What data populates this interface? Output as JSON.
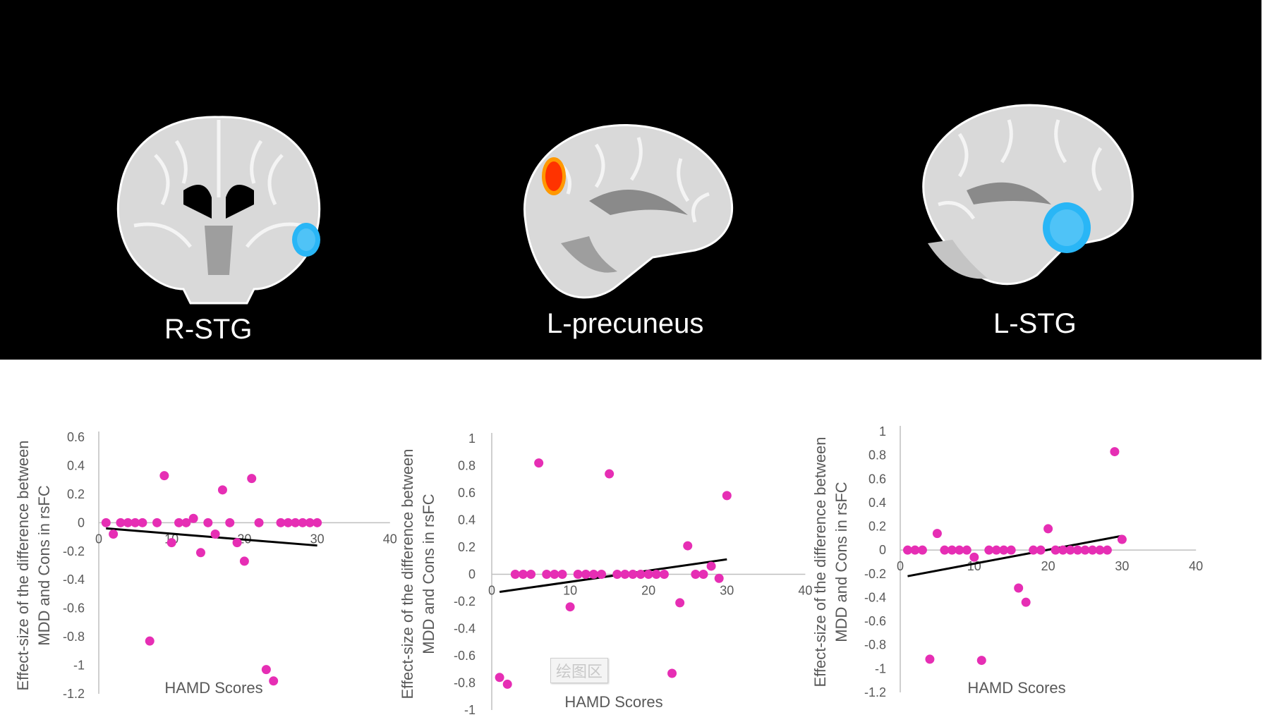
{
  "regions": [
    "R-STG",
    "L-precuneus",
    "L-STG"
  ],
  "watermark": "绘图区",
  "colors": {
    "points": "#e62eb4",
    "trend": "#000000",
    "axis": "#bfbfbf",
    "text": "#595959",
    "panel": "#000000",
    "brain": "#d9d9d9",
    "blue_cluster": "#29b6f6",
    "red_cluster": "#ff3300"
  },
  "chart_data": [
    {
      "type": "scatter",
      "title": "",
      "ylabel": "Effect-size of the difference between MDD and Cons in rsFC",
      "xlabel": "HAMD Scores",
      "xlim": [
        0,
        40
      ],
      "ylim": [
        -1.2,
        0.6
      ],
      "xticks": [
        0,
        10,
        20,
        30,
        40
      ],
      "yticks": [
        0.6,
        0.4,
        0.2,
        0,
        -0.2,
        -0.4,
        -0.6,
        -0.8,
        -1,
        -1.2
      ],
      "trendline": {
        "x": [
          1,
          30
        ],
        "y": [
          -0.04,
          -0.16
        ]
      },
      "series": [
        {
          "points": [
            [
              1,
              0
            ],
            [
              2,
              -0.08
            ],
            [
              3,
              0
            ],
            [
              4,
              0
            ],
            [
              5,
              0
            ],
            [
              6,
              0
            ],
            [
              7,
              -0.83
            ],
            [
              8,
              0
            ],
            [
              9,
              0.33
            ],
            [
              10,
              -0.14
            ],
            [
              11,
              0
            ],
            [
              12,
              0
            ],
            [
              13,
              0.03
            ],
            [
              14,
              -0.21
            ],
            [
              15,
              0
            ],
            [
              16,
              -0.08
            ],
            [
              17,
              0.23
            ],
            [
              18,
              0
            ],
            [
              19,
              -0.14
            ],
            [
              20,
              -0.27
            ],
            [
              21,
              0.31
            ],
            [
              22,
              0
            ],
            [
              23,
              -1.03
            ],
            [
              24,
              -1.11
            ],
            [
              25,
              0
            ],
            [
              26,
              0
            ],
            [
              27,
              0
            ],
            [
              28,
              0
            ],
            [
              29,
              0
            ],
            [
              30,
              0
            ]
          ]
        }
      ]
    },
    {
      "type": "scatter",
      "title": "",
      "ylabel": "Effect-size of the difference between MDD and Cons in rsFC",
      "xlabel": "HAMD Scores",
      "xlim": [
        0,
        40
      ],
      "ylim": [
        -1,
        1
      ],
      "xticks": [
        0,
        10,
        20,
        30,
        40
      ],
      "yticks": [
        1,
        0.8,
        0.6,
        0.4,
        0.2,
        0,
        -0.2,
        -0.4,
        -0.6,
        -0.8,
        -1
      ],
      "trendline": {
        "x": [
          1,
          30
        ],
        "y": [
          -0.13,
          0.11
        ]
      },
      "series": [
        {
          "points": [
            [
              1,
              -0.76
            ],
            [
              2,
              -0.81
            ],
            [
              3,
              0
            ],
            [
              4,
              0
            ],
            [
              5,
              0
            ],
            [
              6,
              0.82
            ],
            [
              7,
              0
            ],
            [
              8,
              0
            ],
            [
              9,
              0
            ],
            [
              10,
              -0.24
            ],
            [
              11,
              0
            ],
            [
              12,
              0
            ],
            [
              13,
              0
            ],
            [
              14,
              0
            ],
            [
              15,
              0.74
            ],
            [
              16,
              0
            ],
            [
              17,
              0
            ],
            [
              18,
              0
            ],
            [
              19,
              0
            ],
            [
              20,
              0
            ],
            [
              21,
              0
            ],
            [
              22,
              0
            ],
            [
              23,
              -0.73
            ],
            [
              24,
              -0.21
            ],
            [
              25,
              0.21
            ],
            [
              26,
              0
            ],
            [
              27,
              0
            ],
            [
              28,
              0.06
            ],
            [
              29,
              -0.03
            ],
            [
              30,
              0.58
            ]
          ]
        }
      ]
    },
    {
      "type": "scatter",
      "title": "",
      "ylabel": "Effect-size of the difference between MDD and Cons in rsFC",
      "xlabel": "HAMD Scores",
      "xlim": [
        0,
        40
      ],
      "ylim": [
        -1.2,
        1
      ],
      "xticks": [
        0,
        10,
        20,
        30,
        40
      ],
      "yticks": [
        1,
        0.8,
        0.6,
        0.4,
        0.2,
        0,
        -0.2,
        -0.4,
        -0.6,
        -0.8,
        -1,
        -1.2
      ],
      "trendline": {
        "x": [
          1,
          30
        ],
        "y": [
          -0.22,
          0.12
        ]
      },
      "series": [
        {
          "points": [
            [
              1,
              0
            ],
            [
              2,
              0
            ],
            [
              3,
              0
            ],
            [
              4,
              -0.92
            ],
            [
              5,
              0.14
            ],
            [
              6,
              0
            ],
            [
              7,
              0
            ],
            [
              8,
              0
            ],
            [
              9,
              0
            ],
            [
              10,
              -0.06
            ],
            [
              11,
              -0.93
            ],
            [
              12,
              0
            ],
            [
              13,
              0
            ],
            [
              14,
              0
            ],
            [
              15,
              0
            ],
            [
              16,
              -0.32
            ],
            [
              17,
              -0.44
            ],
            [
              18,
              0
            ],
            [
              19,
              0
            ],
            [
              20,
              0.18
            ],
            [
              21,
              0
            ],
            [
              22,
              0
            ],
            [
              23,
              0
            ],
            [
              24,
              0
            ],
            [
              25,
              0
            ],
            [
              26,
              0
            ],
            [
              27,
              0
            ],
            [
              28,
              0
            ],
            [
              29,
              0.83
            ],
            [
              30,
              0.09
            ]
          ]
        }
      ]
    }
  ]
}
